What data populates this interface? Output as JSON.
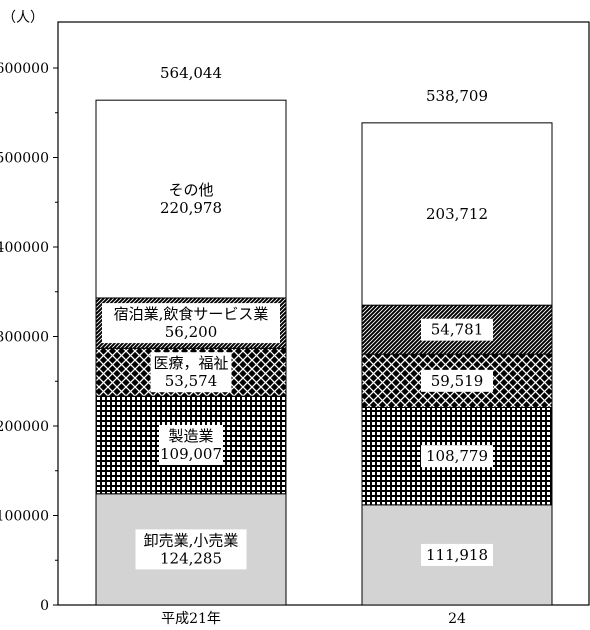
{
  "chart_data": {
    "type": "stacked-bar",
    "unit_label": "（人）",
    "categories": [
      "平成21年",
      "24"
    ],
    "totals": [
      "564,044",
      "538,709"
    ],
    "total_values": [
      564044,
      538709
    ],
    "ylim": [
      0,
      600000
    ],
    "yticks": [
      "0",
      "100000",
      "200000",
      "300000",
      "400000",
      "500000",
      "600000"
    ],
    "series": [
      {
        "name": "卸売業,小売業",
        "values": [
          124285,
          111918
        ],
        "value_labels": [
          "124,285",
          "111,918"
        ],
        "fill": "#d3d3d3",
        "pattern": "solid",
        "name_shown": [
          true,
          false
        ]
      },
      {
        "name": "製造業",
        "values": [
          109007,
          108779
        ],
        "value_labels": [
          "109,007",
          "108,779"
        ],
        "fill": "#000000",
        "pattern": "grid",
        "name_shown": [
          true,
          false
        ]
      },
      {
        "name": "医療，福祉",
        "values": [
          53574,
          59519
        ],
        "value_labels": [
          "53,574",
          "59,519"
        ],
        "fill": "#000000",
        "pattern": "crosshatch",
        "name_shown": [
          true,
          false
        ]
      },
      {
        "name": "宿泊業,飲食サービス業",
        "values": [
          56200,
          54781
        ],
        "value_labels": [
          "56,200",
          "54,781"
        ],
        "fill": "#000000",
        "pattern": "diagonal",
        "name_shown": [
          true,
          false
        ]
      },
      {
        "name": "その他",
        "values": [
          220978,
          203712
        ],
        "value_labels": [
          "220,978",
          "203,712"
        ],
        "fill": "#ffffff",
        "pattern": "none",
        "name_shown": [
          true,
          false
        ]
      }
    ]
  }
}
